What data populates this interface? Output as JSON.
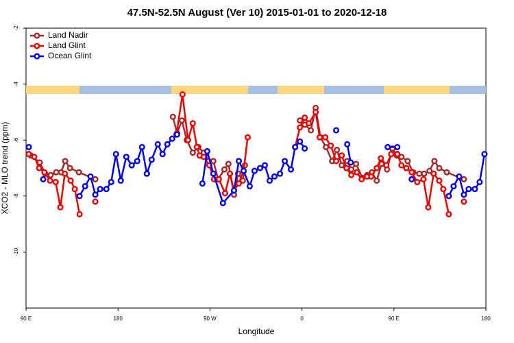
{
  "chart_data": {
    "type": "line",
    "title": "47.5N-52.5N August (Ver 10)   2015-01-01 to 2020-12-18",
    "x_label": "Longitude",
    "y_label": "XCO2 - MLO trend (ppm)",
    "xlim": [
      90,
      540
    ],
    "xticks": [
      {
        "value": 90,
        "label": "90 E"
      },
      {
        "value": 180,
        "label": "180"
      },
      {
        "value": 270,
        "label": "90 W"
      },
      {
        "value": 360,
        "label": "0"
      },
      {
        "value": 450,
        "label": "90 E"
      },
      {
        "value": 540,
        "label": "180"
      }
    ],
    "ylim": [
      -12,
      -2
    ],
    "yticks": [
      -10,
      -8,
      -6,
      -4,
      -2
    ],
    "legend": "top-left",
    "series": [
      {
        "name": "Land Nadir",
        "color": "#a52a2a",
        "x": [
          94.7,
          103.4,
          108.8,
          114.2,
          119.5,
          124.2,
          128.3,
          133,
          141.7,
          157.8,
          null,
          233.7,
          237.8,
          242.5,
          247.2,
          253.2,
          258.6,
          263.9,
          268.6,
          273.3,
          278,
          284.1,
          288.1,
          293.5,
          297.5,
          302.2,
          304.2,
          null,
          358,
          362.7,
          368.7,
          373.4,
          378.1,
          383.5,
          389.5,
          394.2,
          398.9,
          404.3,
          408.3,
          413,
          419.1,
          423.8,
          428.5,
          433.2,
          437.9,
          443.3,
          448.6,
          452.7,
          457.4,
          463.4,
          468.8,
          474.8,
          479.5,
          484.9,
          489.6,
          494.3,
          501.7,
          518.5
        ],
        "values": [
          -6.55,
          -6.8,
          -7.2,
          -7.25,
          -7.15,
          -7.15,
          -6.75,
          -7.0,
          -7.15,
          -7.4,
          null,
          -5.17,
          -5.75,
          -5.3,
          -6.0,
          -6.45,
          -6.25,
          -6.45,
          -6.75,
          -6.75,
          -7.4,
          -7.05,
          -6.85,
          -7.95,
          -7.2,
          -7.45,
          -6.9,
          null,
          -5.3,
          -5.45,
          -5.65,
          -4.85,
          -5.9,
          -6.25,
          -6.75,
          -6.35,
          -6.9,
          -6.75,
          -7.05,
          -6.85,
          -7.35,
          -7.25,
          -7.15,
          -7.45,
          -6.85,
          -7.05,
          -6.3,
          -6.55,
          -6.6,
          -6.75,
          -7.15,
          -7.2,
          -7.2,
          -7.1,
          -6.75,
          -7.0,
          -7.15,
          -7.4
        ]
      },
      {
        "name": "Land Glint",
        "color": "#ee0000",
        "x": [
          92.7,
          98,
          102.8,
          108,
          113.5,
          119,
          123.6,
          128,
          133.7,
          137.7,
          142.4,
          null,
          157.8,
          null,
          237.1,
          243.1,
          248.5,
          253.2,
          257.2,
          259.9,
          263.9,
          269.3,
          274,
          278.7,
          284.8,
          289.5,
          293.5,
          298.2,
          302.9,
          306.9,
          null,
          353.3,
          358,
          362.7,
          366.7,
          373.4,
          377.4,
          382.8,
          388.2,
          393.5,
          398.9,
          403.6,
          408.3,
          413.7,
          418.4,
          423.8,
          427.8,
          433.2,
          437.2,
          442.6,
          447.3,
          453.3,
          457.4,
          462.1,
          467.4,
          472.8,
          478.9,
          483.6,
          488.9,
          494.3,
          498.3,
          503.7,
          null,
          518.5
        ],
        "values": [
          -6.5,
          -6.6,
          -7.0,
          -7.15,
          -7.45,
          -7.5,
          -8.4,
          -7.2,
          -7.45,
          -7.75,
          -8.65,
          null,
          -8.2,
          null,
          -5.8,
          -4.37,
          -6.0,
          -5.4,
          -6.25,
          -6.55,
          -6.6,
          -6.9,
          -7.4,
          -7.4,
          -7.9,
          -7.2,
          -7.8,
          -7.55,
          -7.1,
          -5.9,
          null,
          -6.25,
          -5.55,
          -5.2,
          -5.4,
          -5.0,
          -5.9,
          -5.9,
          -6.2,
          -6.75,
          -6.55,
          -7.0,
          -7.25,
          -7.15,
          -7.4,
          -7.3,
          -7.3,
          -7.0,
          -6.65,
          -6.9,
          -6.5,
          -6.5,
          -6.9,
          -7.0,
          -7.15,
          -7.5,
          -7.4,
          -8.4,
          -7.2,
          -7.45,
          -7.75,
          -8.65,
          null,
          -8.2
        ]
      },
      {
        "name": "Ocean Glint",
        "color": "#0000ee",
        "x": [
          92.7,
          null,
          106.8,
          null,
          142.4,
          147.8,
          153.1,
          157.8,
          162.5,
          168.6,
          173.3,
          178,
          182.7,
          188.1,
          193.4,
          198.8,
          203.5,
          208.2,
          212.9,
          218.9,
          223.6,
          228.3,
          233,
          237.8,
          null,
          262.6,
          267.3,
          273.3,
          282.7,
          293.5,
          298.2,
          302.9,
          308.9,
          313.6,
          319,
          323.7,
          328.4,
          333.1,
          338.5,
          343.2,
          349.2,
          353.3,
          358,
          362.7,
          null,
          393.5,
          null,
          404.3,
          407.7,
          null,
          443.9,
          453.3,
          null,
          467.4,
          null,
          503.7,
          508.4,
          513.8,
          518.5,
          523.2,
          529.2,
          533.9,
          538.6
        ],
        "values": [
          -6.25,
          null,
          -7.4,
          null,
          -8.0,
          -7.65,
          -7.3,
          -7.95,
          -7.75,
          -7.75,
          -7.5,
          -6.5,
          -7.45,
          -6.6,
          -6.9,
          -6.75,
          -6.25,
          -7.2,
          -6.7,
          -6.15,
          -6.5,
          -6.15,
          -5.95,
          -5.8,
          null,
          -7.55,
          -6.4,
          -7.2,
          -8.25,
          -7.8,
          -6.75,
          -7.1,
          -7.65,
          -7.1,
          -7.0,
          -6.9,
          -7.45,
          -7.3,
          -7.2,
          -6.75,
          -7.05,
          -6.25,
          -6.05,
          -6.3,
          null,
          -5.65,
          null,
          -6.15,
          -6.8,
          null,
          -6.25,
          -6.25,
          null,
          -7.4,
          null,
          -8.0,
          -7.65,
          -7.3,
          -7.95,
          -7.75,
          -7.75,
          -7.5,
          -6.5
        ]
      }
    ]
  }
}
